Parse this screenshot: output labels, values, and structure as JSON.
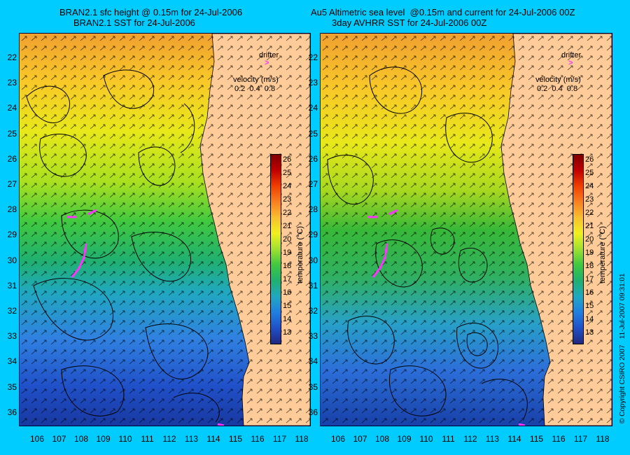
{
  "left": {
    "title_line1": "BRAN2.1 sfc height @ 0.15m for 24-Jul-2006",
    "title_line2": "BRAN2.1 SST for 24-Jul-2006"
  },
  "right": {
    "title_line1": "Au5 Altimetric sea level  @0.15m and current for 24-Jul-2006 00Z",
    "title_line2": "3day AVHRR SST for 24-Jul-2006 00Z"
  },
  "legend": {
    "drifter_label": "drifter",
    "velocity_label": "velocity (m/s)",
    "velocity_scale": "0.2  0.4  0.8",
    "colorbar_unit": "temperature (°C)",
    "colorbar_ticks": [
      "26",
      "25",
      "24",
      "23",
      "22",
      "21",
      "20",
      "19",
      "18",
      "17",
      "16",
      "15",
      "14",
      "13"
    ]
  },
  "axes": {
    "lat_ticks": [
      "22",
      "23",
      "24",
      "25",
      "26",
      "27",
      "28",
      "29",
      "30",
      "31",
      "32",
      "33",
      "34",
      "35",
      "36"
    ],
    "lon_ticks": [
      "106",
      "107",
      "108",
      "109",
      "110",
      "111",
      "112",
      "113",
      "114",
      "115",
      "116",
      "117",
      "118"
    ]
  },
  "copyright": "© Copyright CSIRO 2007   11-Jul-2007 09:31:01",
  "colors": {
    "background": "#00ccff",
    "land": "#ffcc99",
    "drifter": "#ff33ff"
  }
}
